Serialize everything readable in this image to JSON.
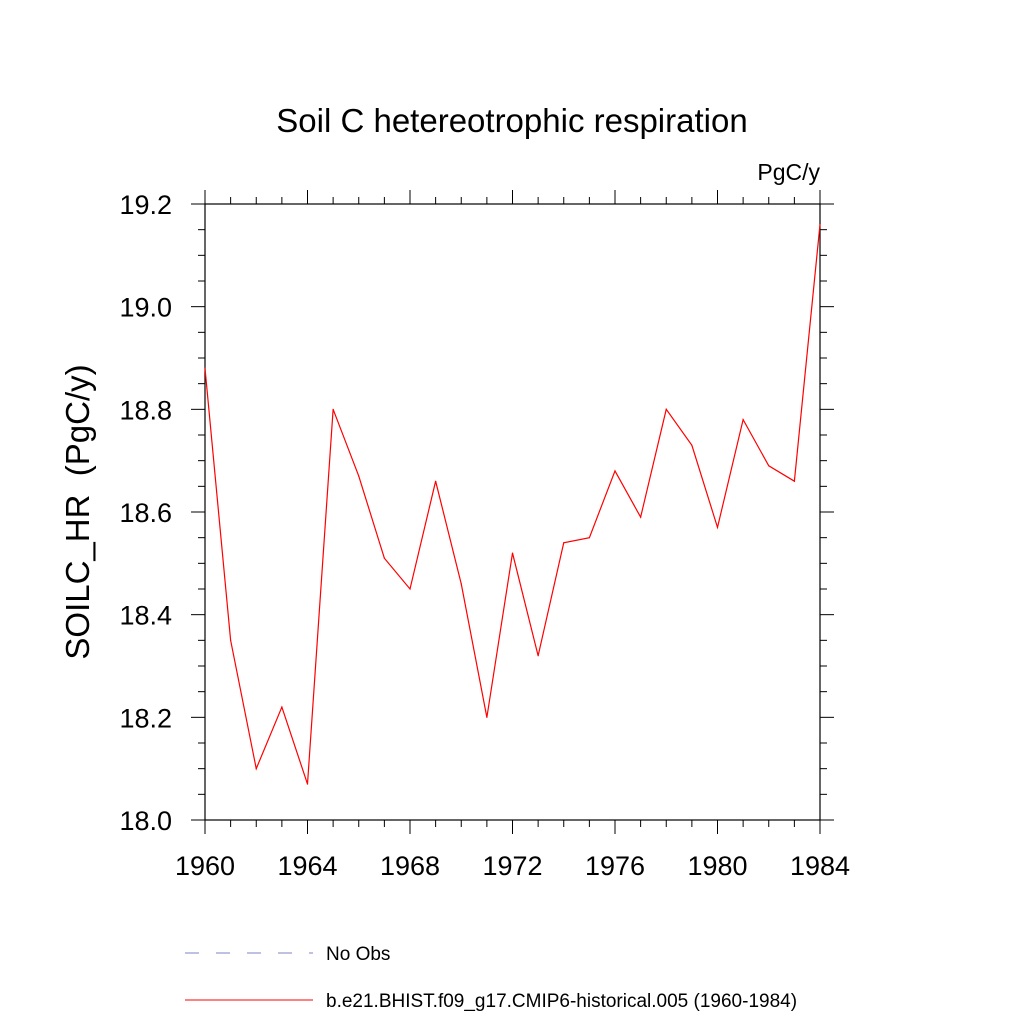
{
  "chart_data": {
    "type": "line",
    "title": "Soil C hetereotrophic respiration",
    "units": "PgC/y",
    "ylabel": "SOILC_HR  (PgC/y)",
    "xlabel": "",
    "xlim": [
      1960,
      1984
    ],
    "ylim": [
      18.0,
      19.2
    ],
    "xticks": [
      1960,
      1964,
      1968,
      1972,
      1976,
      1980,
      1984
    ],
    "yticks": [
      "18.0",
      "18.2",
      "18.4",
      "18.6",
      "18.8",
      "19.0",
      "19.2"
    ],
    "grid": false,
    "legend_position": "bottom",
    "series": [
      {
        "name": "b.e21.BHIST.f09_g17.CMIP6-historical.005 (1960-1984)",
        "color": "#ff0000",
        "style": "solid",
        "x": [
          1960,
          1961,
          1962,
          1963,
          1964,
          1965,
          1966,
          1967,
          1968,
          1969,
          1970,
          1971,
          1972,
          1973,
          1974,
          1975,
          1976,
          1977,
          1978,
          1979,
          1980,
          1981,
          1982,
          1983,
          1984
        ],
        "y": [
          18.88,
          18.35,
          18.1,
          18.22,
          18.07,
          18.8,
          18.67,
          18.51,
          18.45,
          18.66,
          18.46,
          18.2,
          18.52,
          18.32,
          18.54,
          18.55,
          18.68,
          18.59,
          18.8,
          18.73,
          18.57,
          18.78,
          18.69,
          18.66,
          19.16
        ]
      }
    ],
    "legend": [
      {
        "label": "No Obs",
        "color": "#8080c0",
        "style": "dashed"
      },
      {
        "label": "b.e21.BHIST.f09_g17.CMIP6-historical.005 (1960-1984)",
        "color": "#ff0000",
        "style": "solid"
      }
    ]
  }
}
